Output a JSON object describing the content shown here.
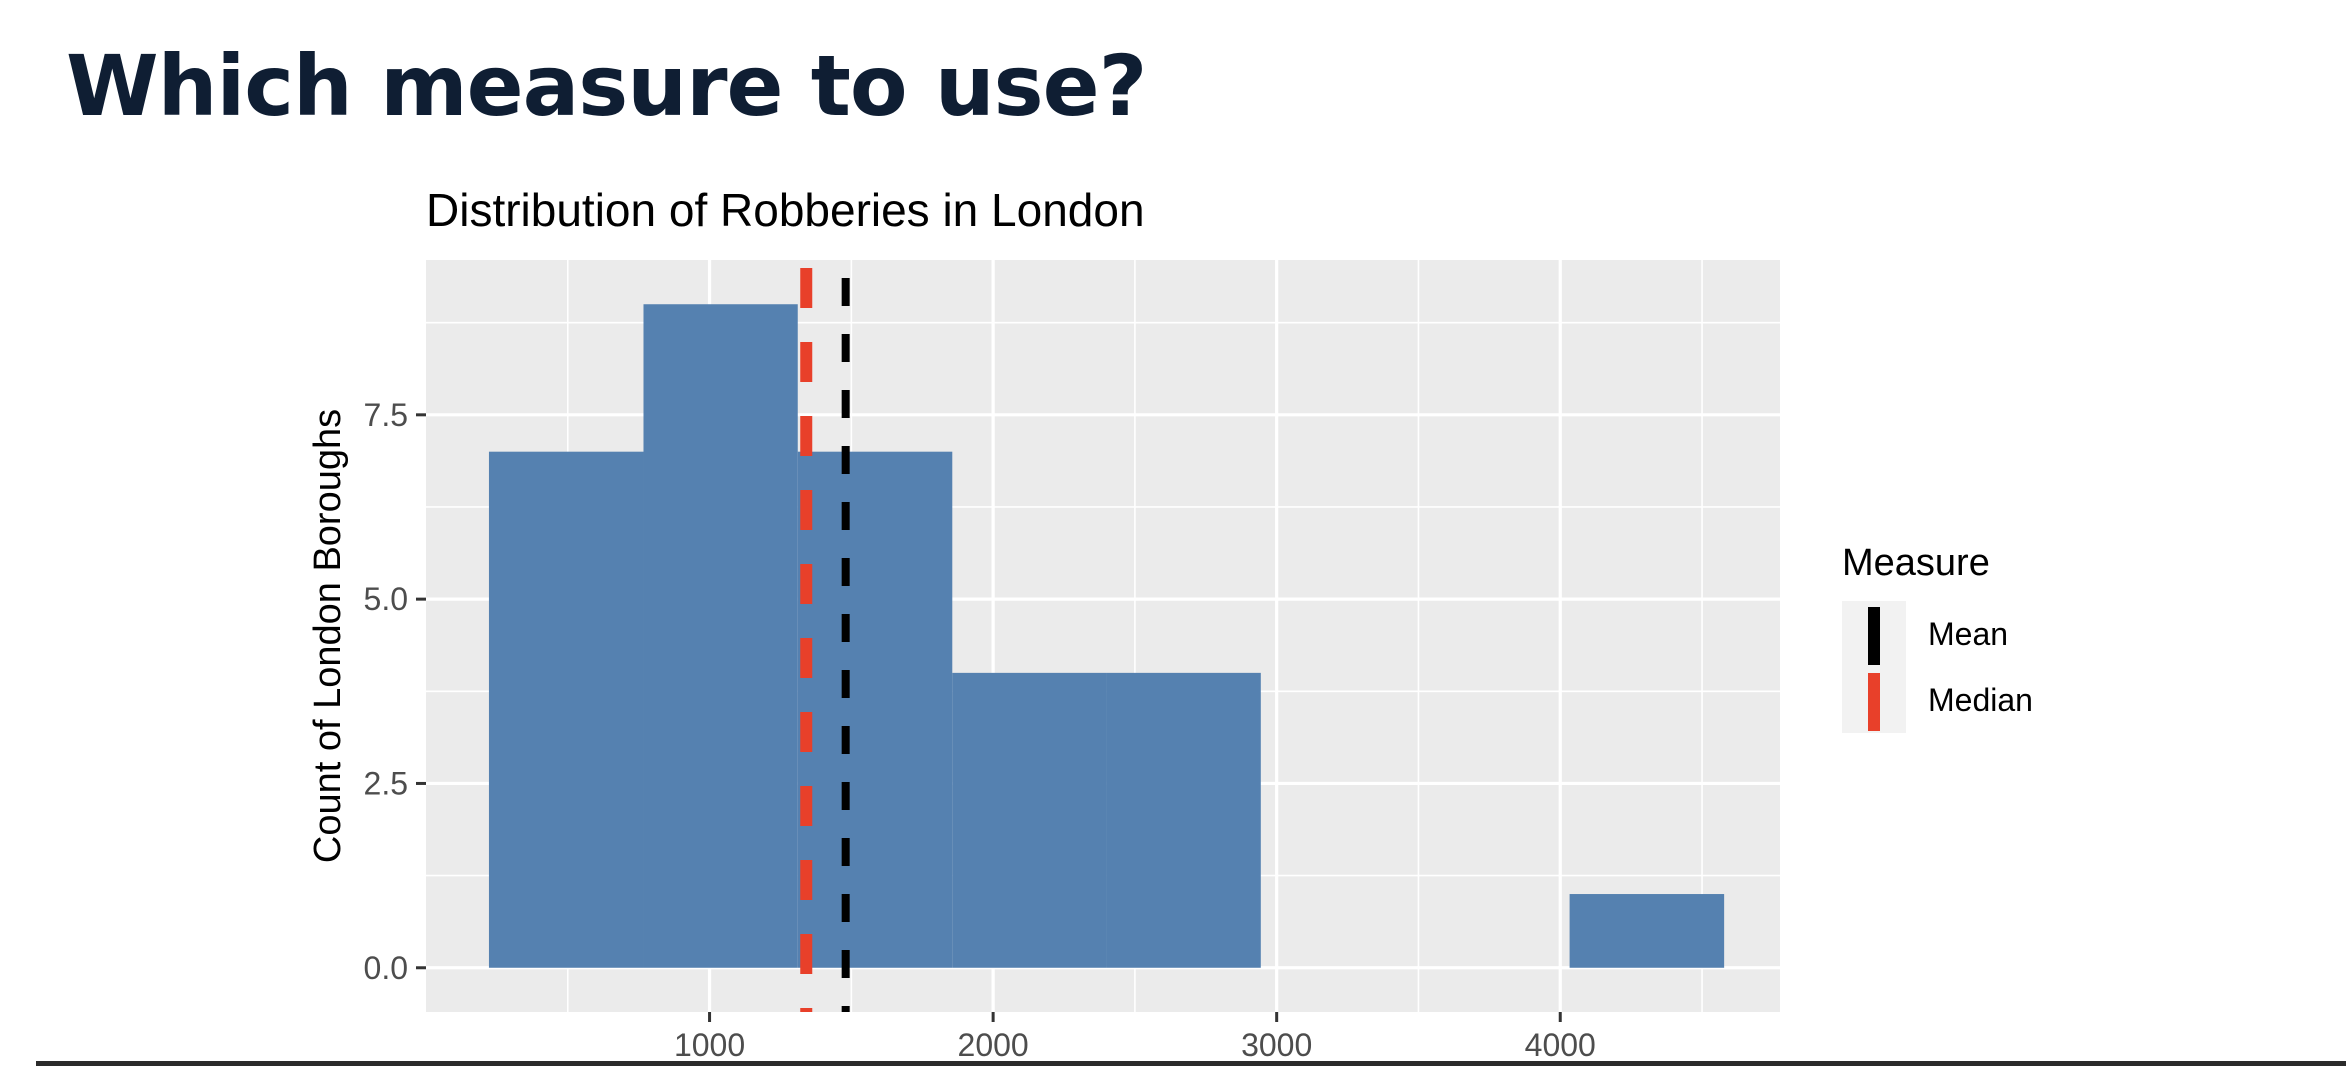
{
  "slide": {
    "title": "Which measure to use?"
  },
  "chart_data": {
    "type": "histogram",
    "title": "Distribution of Robberies in London",
    "xlabel": "",
    "ylabel": "Count of London Boroughs",
    "xlim": [
      0,
      4775
    ],
    "ylim": [
      -0.6,
      9.6
    ],
    "x_ticks": [
      1000,
      2000,
      3000,
      4000
    ],
    "x_tick_labels": [
      "1000",
      "2000",
      "3000",
      "4000"
    ],
    "y_ticks": [
      0,
      2.5,
      5,
      7.5
    ],
    "y_tick_labels": [
      "0.0",
      "2.5",
      "5.0",
      "7.5"
    ],
    "bins": [
      {
        "x0": 222,
        "x1": 767,
        "count": 7
      },
      {
        "x0": 767,
        "x1": 1311,
        "count": 9
      },
      {
        "x0": 1311,
        "x1": 1856,
        "count": 7
      },
      {
        "x0": 1856,
        "x1": 2400,
        "count": 4
      },
      {
        "x0": 2400,
        "x1": 2944,
        "count": 4
      },
      {
        "x0": 2944,
        "x1": 3489,
        "count": 0
      },
      {
        "x0": 3489,
        "x1": 4033,
        "count": 0
      },
      {
        "x0": 4033,
        "x1": 4578,
        "count": 1
      }
    ],
    "bar_color": "#5581b0",
    "grid": true,
    "background_color": "#ebebeb",
    "lines": [
      {
        "name": "Mean",
        "x": 1480,
        "color": "#000000",
        "style": "dashed"
      },
      {
        "name": "Median",
        "x": 1341,
        "color": "#e8402a",
        "style": "dashed"
      }
    ],
    "legend": {
      "title": "Measure",
      "position": "right",
      "entries": [
        "Mean",
        "Median"
      ]
    }
  }
}
